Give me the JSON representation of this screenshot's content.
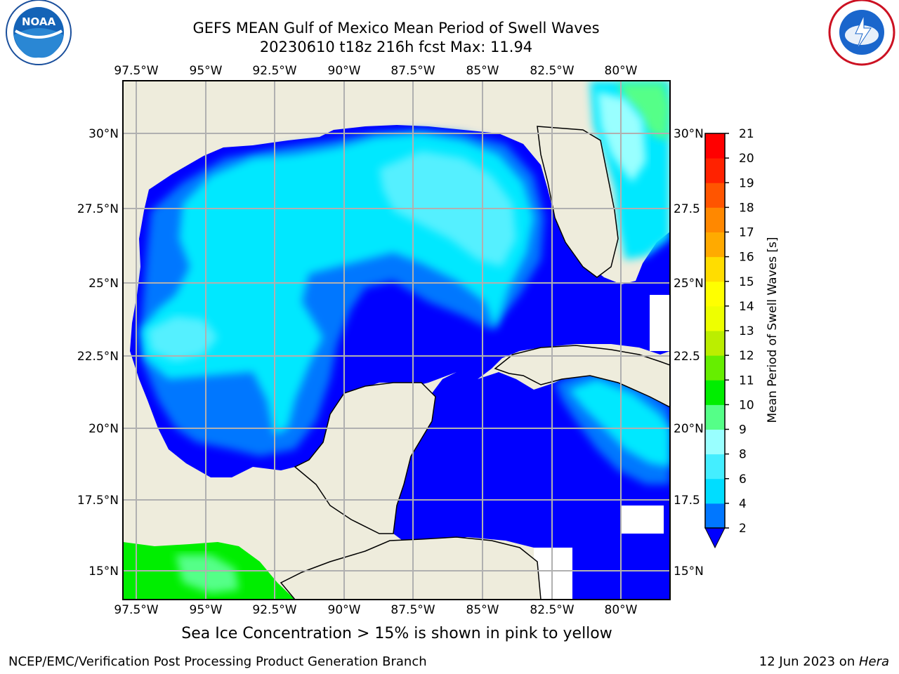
{
  "title": {
    "line1": "GEFS MEAN Gulf of Mexico Mean Period of Swell Waves",
    "line2": "20230610 t18z 216h fcst   Max: 11.94"
  },
  "caption": "Sea Ice Concentration > 15% is shown in pink to yellow",
  "footer": {
    "left": "NCEP/EMC/Verification Post Processing Product Generation Branch",
    "right_date": "12 Jun 2023 on ",
    "right_host": "Hera"
  },
  "logos": {
    "left": "noaa-logo",
    "right": "nws-logo"
  },
  "map": {
    "lon_ticks": [
      "97.5°W",
      "95°W",
      "92.5°W",
      "90°W",
      "87.5°W",
      "85°W",
      "82.5°W",
      "80°W"
    ],
    "lat_ticks": [
      "30°N",
      "27.5°N",
      "25°N",
      "22.5°N",
      "20°N",
      "17.5°N",
      "15°N"
    ],
    "lat_ticks_right": [
      "30°N",
      "27.5",
      "25°N",
      "22.5",
      "20°N",
      "17.5",
      "15°N"
    ],
    "land_color": "#eeecdc",
    "grid_color": "#b0b0b0"
  },
  "colorbar": {
    "label": "Mean Period of Swell Waves [s]",
    "ticks": [
      "2",
      "4",
      "6",
      "8",
      "9",
      "10",
      "11",
      "12",
      "13",
      "14",
      "15",
      "16",
      "17",
      "18",
      "19",
      "20",
      "21"
    ],
    "colors": [
      "#0000ff",
      "#0077ff",
      "#00ddff",
      "#44eeff",
      "#99ffff",
      "#55ff88",
      "#00ee00",
      "#66ee00",
      "#bbee00",
      "#eeff00",
      "#ffff00",
      "#ffdd00",
      "#ffaa00",
      "#ff8800",
      "#ff5500",
      "#ff2200",
      "#ff0000"
    ]
  }
}
